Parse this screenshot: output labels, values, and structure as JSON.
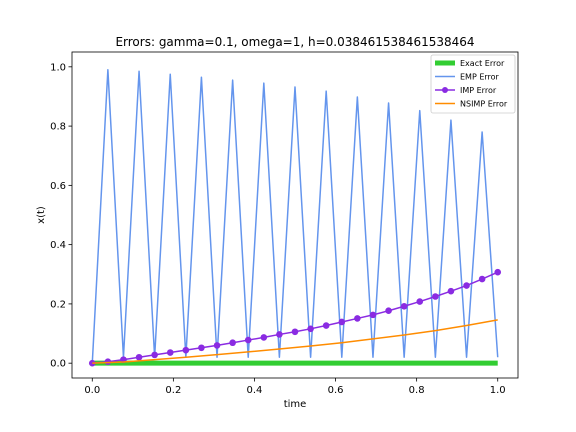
{
  "chart_data": {
    "type": "line",
    "title": "Errors: gamma=0.1, omega=1, h=0.038461538461538464",
    "xlabel": "time",
    "ylabel": "x(t)",
    "xlim": [
      -0.05,
      1.05
    ],
    "ylim": [
      -0.05,
      1.05
    ],
    "xticks": [
      "0.0",
      "0.2",
      "0.4",
      "0.6",
      "0.8",
      "1.0"
    ],
    "yticks": [
      "0.0",
      "0.2",
      "0.4",
      "0.6",
      "0.8",
      "1.0"
    ],
    "grid": false,
    "legend": "top-right",
    "series": [
      {
        "name": "Exact Error",
        "color": "#32cd32",
        "marker": false,
        "x": [
          0.0,
          1.0
        ],
        "y": [
          0.0,
          0.0
        ]
      },
      {
        "name": "EMP Error",
        "color": "#6495ed",
        "marker": false,
        "x": [
          0.0,
          0.0385,
          0.0769,
          0.1154,
          0.1538,
          0.1923,
          0.2308,
          0.2692,
          0.3077,
          0.3462,
          0.3846,
          0.4231,
          0.4615,
          0.5,
          0.5385,
          0.5769,
          0.6154,
          0.6538,
          0.6923,
          0.7308,
          0.7692,
          0.8077,
          0.8462,
          0.8846,
          0.9231,
          0.9615,
          1.0
        ],
        "y": [
          0.0,
          0.99,
          0.02,
          0.985,
          0.02,
          0.975,
          0.02,
          0.965,
          0.02,
          0.955,
          0.02,
          0.945,
          0.02,
          0.932,
          0.02,
          0.918,
          0.02,
          0.898,
          0.02,
          0.878,
          0.02,
          0.852,
          0.02,
          0.82,
          0.02,
          0.78,
          0.02
        ]
      },
      {
        "name": "IMP Error",
        "color": "#8a2be2",
        "marker": true,
        "x": [
          0.0,
          0.0385,
          0.0769,
          0.1154,
          0.1538,
          0.1923,
          0.2308,
          0.2692,
          0.3077,
          0.3462,
          0.3846,
          0.4231,
          0.4615,
          0.5,
          0.5385,
          0.5769,
          0.6154,
          0.6538,
          0.6923,
          0.7308,
          0.7692,
          0.8077,
          0.8462,
          0.8846,
          0.9231,
          0.9615,
          1.0
        ],
        "y": [
          0.0,
          0.005,
          0.012,
          0.02,
          0.028,
          0.036,
          0.044,
          0.052,
          0.06,
          0.069,
          0.078,
          0.087,
          0.097,
          0.106,
          0.116,
          0.127,
          0.139,
          0.151,
          0.163,
          0.177,
          0.192,
          0.208,
          0.225,
          0.243,
          0.262,
          0.284,
          0.307
        ]
      },
      {
        "name": "NSIMP Error",
        "color": "#ff8c00",
        "marker": false,
        "x": [
          0.0,
          0.0769,
          0.1538,
          0.2308,
          0.3077,
          0.3846,
          0.4615,
          0.5385,
          0.6154,
          0.6923,
          0.7692,
          0.8462,
          0.9231,
          1.0
        ],
        "y": [
          0.0,
          0.004,
          0.012,
          0.02,
          0.029,
          0.038,
          0.048,
          0.058,
          0.069,
          0.082,
          0.095,
          0.11,
          0.127,
          0.146
        ]
      }
    ]
  }
}
